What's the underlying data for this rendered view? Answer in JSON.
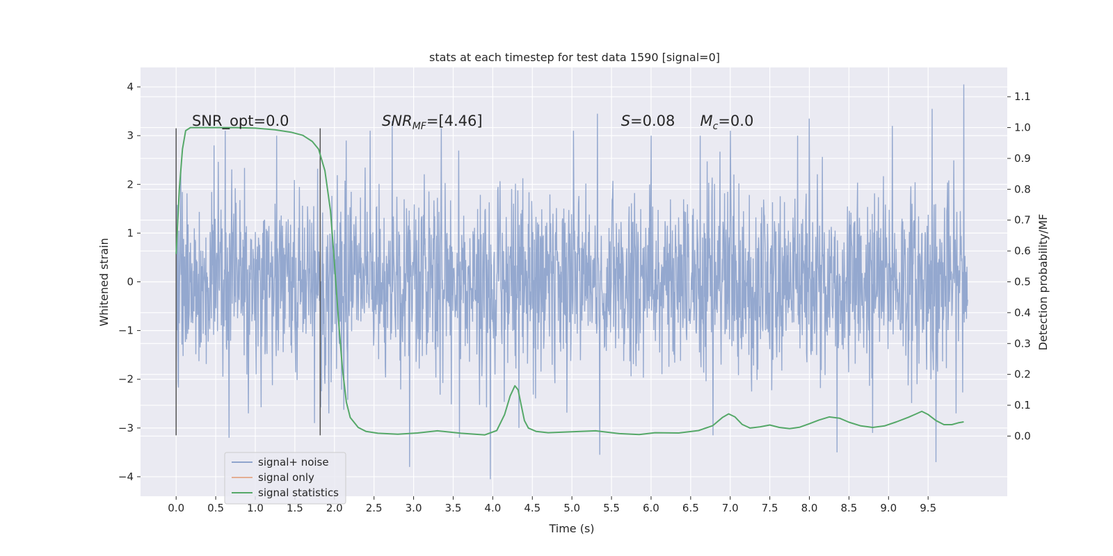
{
  "chart_data": {
    "type": "line",
    "title": "stats at each timestep for test data 1590 [signal=0]",
    "xlabel": "Time (s)",
    "ylabel": "Whitened strain",
    "y2label": "Detection probability/MF",
    "xlim": [
      -0.45,
      10.5
    ],
    "ylim": [
      -4.4,
      4.4
    ],
    "y2lim": [
      -0.195,
      1.195
    ],
    "xticks": [
      0.0,
      0.5,
      1.0,
      1.5,
      2.0,
      2.5,
      3.0,
      3.5,
      4.0,
      4.5,
      5.0,
      5.5,
      6.0,
      6.5,
      7.0,
      7.5,
      8.0,
      8.5,
      9.0,
      9.5
    ],
    "xtick_labels": [
      "0.0",
      "0.5",
      "1.0",
      "1.5",
      "2.0",
      "2.5",
      "3.0",
      "3.5",
      "4.0",
      "4.5",
      "5.0",
      "5.5",
      "6.0",
      "6.5",
      "7.0",
      "7.5",
      "8.0",
      "8.5",
      "9.0",
      "9.5"
    ],
    "yticks": [
      4,
      3,
      2,
      1,
      0,
      -1,
      -2,
      -3,
      -4
    ],
    "ytick_labels": [
      "4",
      "3",
      "2",
      "1",
      "0",
      "−1",
      "−2",
      "−3",
      "−4"
    ],
    "y2ticks": [
      1.1,
      1.0,
      0.9,
      0.8,
      0.7,
      0.6,
      0.5,
      0.4,
      0.3,
      0.2,
      0.1,
      0.0
    ],
    "y2tick_labels": [
      "1.1",
      "1.0",
      "0.9",
      "0.8",
      "0.7",
      "0.6",
      "0.5",
      "0.4",
      "0.3",
      "0.2",
      "0.1",
      "0.0"
    ],
    "grid": true,
    "legend_position": "lower-left",
    "vertical_markers": [
      0.0,
      1.82
    ],
    "vertical_marker_range": [
      -3.15,
      3.15
    ],
    "annotations": [
      {
        "id": "snr-opt",
        "text": "SNR_opt=0.0",
        "x": 0.2,
        "y": 3.2
      },
      {
        "id": "snr-mf",
        "text": "SNR_MF=[4.46]",
        "x": 2.6,
        "y": 3.2
      },
      {
        "id": "s-value",
        "text": "S=0.08",
        "x": 5.62,
        "y": 3.2
      },
      {
        "id": "mc-value",
        "text": "M_c=0.0",
        "x": 6.62,
        "y": 3.2
      }
    ],
    "series": [
      {
        "name": "signal+ noise",
        "axis": "left",
        "color": "#8fa4cc",
        "sample_rate_hz": 204.8,
        "t_start": 0.0,
        "t_end": 10.0,
        "std": 0.95,
        "spikes": [
          [
            0.06,
            2.3
          ],
          [
            0.48,
            2.8
          ],
          [
            0.62,
            3.1
          ],
          [
            0.67,
            -3.2
          ],
          [
            1.27,
            3.0
          ],
          [
            1.75,
            -2.9
          ],
          [
            2.15,
            2.9
          ],
          [
            2.45,
            3.1
          ],
          [
            2.73,
            3.3
          ],
          [
            2.95,
            -3.8
          ],
          [
            3.35,
            3.15
          ],
          [
            3.58,
            -3.2
          ],
          [
            3.97,
            -4.05
          ],
          [
            4.33,
            -3.0
          ],
          [
            5.02,
            3.1
          ],
          [
            5.32,
            3.45
          ],
          [
            5.35,
            -3.55
          ],
          [
            6.0,
            3.0
          ],
          [
            6.62,
            3.0
          ],
          [
            6.78,
            -3.15
          ],
          [
            7.0,
            3.1
          ],
          [
            7.85,
            3.0
          ],
          [
            8.0,
            3.35
          ],
          [
            8.35,
            -3.5
          ],
          [
            8.8,
            -3.1
          ],
          [
            9.05,
            3.2
          ],
          [
            9.55,
            3.55
          ],
          [
            9.6,
            -3.7
          ],
          [
            9.95,
            4.05
          ]
        ]
      },
      {
        "name": "signal only",
        "axis": "left",
        "color": "#dd8452",
        "x": [],
        "y": []
      },
      {
        "name": "signal statistics",
        "axis": "right",
        "color": "#55a868",
        "x": [
          0.0,
          0.04,
          0.08,
          0.12,
          0.18,
          0.25,
          0.35,
          0.5,
          0.75,
          1.0,
          1.25,
          1.45,
          1.6,
          1.72,
          1.8,
          1.88,
          1.95,
          2.0,
          2.05,
          2.1,
          2.15,
          2.2,
          2.3,
          2.4,
          2.55,
          2.8,
          3.05,
          3.3,
          3.6,
          3.9,
          4.05,
          4.15,
          4.22,
          4.28,
          4.32,
          4.36,
          4.4,
          4.45,
          4.55,
          4.7,
          5.0,
          5.3,
          5.6,
          5.85,
          6.05,
          6.35,
          6.6,
          6.78,
          6.9,
          6.98,
          7.06,
          7.15,
          7.25,
          7.38,
          7.5,
          7.62,
          7.75,
          7.88,
          8.0,
          8.12,
          8.25,
          8.38,
          8.5,
          8.65,
          8.8,
          8.95,
          9.1,
          9.25,
          9.35,
          9.42,
          9.5,
          9.6,
          9.7,
          9.8,
          9.88,
          9.95
        ],
        "y": [
          0.59,
          0.8,
          0.93,
          0.99,
          1.0,
          1.0,
          1.0,
          1.0,
          1.0,
          0.998,
          0.993,
          0.985,
          0.975,
          0.955,
          0.93,
          0.86,
          0.73,
          0.56,
          0.38,
          0.22,
          0.11,
          0.06,
          0.028,
          0.015,
          0.009,
          0.006,
          0.01,
          0.017,
          0.009,
          0.004,
          0.018,
          0.07,
          0.13,
          0.163,
          0.15,
          0.1,
          0.05,
          0.026,
          0.015,
          0.011,
          0.014,
          0.017,
          0.008,
          0.005,
          0.011,
          0.01,
          0.018,
          0.034,
          0.06,
          0.072,
          0.062,
          0.038,
          0.026,
          0.03,
          0.036,
          0.028,
          0.024,
          0.029,
          0.04,
          0.052,
          0.062,
          0.058,
          0.045,
          0.033,
          0.028,
          0.033,
          0.046,
          0.061,
          0.072,
          0.08,
          0.07,
          0.05,
          0.037,
          0.037,
          0.043,
          0.046
        ]
      }
    ]
  }
}
